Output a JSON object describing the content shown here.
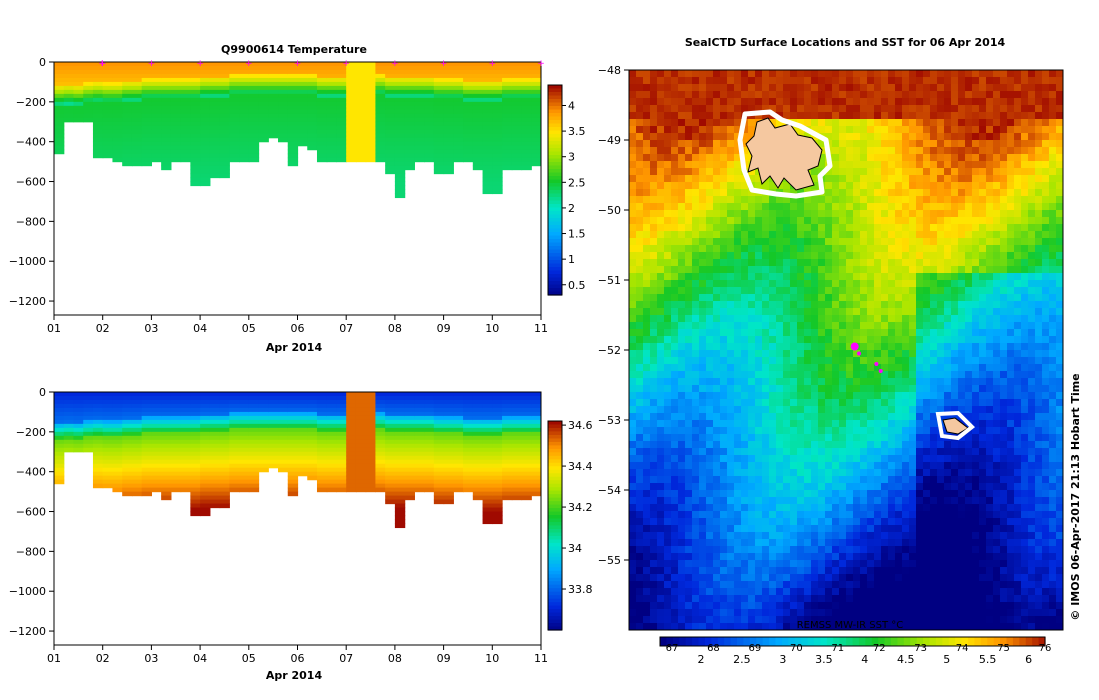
{
  "chart_data": [
    {
      "type": "heatmap",
      "title": "Q9900614  Temperature",
      "xlabel": "Apr 2014",
      "ylabel": "",
      "x_ticks": [
        "01",
        "02",
        "03",
        "04",
        "05",
        "06",
        "07",
        "08",
        "09",
        "10",
        "11"
      ],
      "y_ticks": [
        0,
        -200,
        -400,
        -600,
        -800,
        -1000,
        -1200
      ],
      "ylim": [
        -1270,
        0
      ],
      "colorbar_ticks": [
        "0.5",
        "1",
        "1.5",
        "2",
        "2.5",
        "3",
        "3.5",
        "4"
      ],
      "colorbar_range": [
        0.3,
        4.4
      ],
      "variable": "temperature",
      "thermocline_depth": [
        150,
        145,
        150,
        140,
        135,
        140,
        140,
        130,
        130,
        120,
        120,
        120,
        120,
        120,
        120,
        110,
        110,
        110,
        100,
        100,
        100,
        100,
        100,
        100,
        100,
        100,
        100,
        110,
        110,
        110,
        100,
        100,
        100,
        100,
        110,
        110,
        110,
        110,
        110,
        120,
        120,
        120,
        130,
        130,
        130,
        130,
        120,
        120,
        120,
        120
      ],
      "profile_depth": [
        450,
        300,
        300,
        300,
        480,
        480,
        500,
        510,
        520,
        520,
        500,
        530,
        500,
        500,
        610,
        610,
        570,
        570,
        500,
        500,
        500,
        390,
        380,
        400,
        520,
        420,
        440,
        490,
        490,
        490,
        500,
        500,
        500,
        500,
        560,
        680,
        540,
        500,
        500,
        550,
        550,
        500,
        500,
        540,
        650,
        650,
        540,
        530,
        530,
        520
      ],
      "profile_markers": [
        "01",
        "02",
        "03",
        "04",
        "05",
        "06",
        "07",
        "08",
        "09",
        "10",
        "11"
      ]
    },
    {
      "type": "heatmap",
      "title": "",
      "xlabel": "Apr 2014",
      "ylabel": "",
      "x_ticks": [
        "01",
        "02",
        "03",
        "04",
        "05",
        "06",
        "07",
        "08",
        "09",
        "10",
        "11"
      ],
      "y_ticks": [
        0,
        -200,
        -400,
        -600,
        -800,
        -1000,
        -1200
      ],
      "ylim": [
        -1270,
        0
      ],
      "colorbar_ticks": [
        "33.8",
        "34",
        "34.2",
        "34.4",
        "34.6"
      ],
      "colorbar_range": [
        33.6,
        34.62
      ],
      "variable": "salinity"
    },
    {
      "type": "heatmap",
      "title": "SealCTD Surface Locations and SST for 06 Apr 2014",
      "xlabel": "",
      "ylabel": "",
      "y_ticks": [
        "-48",
        "-49",
        "-50",
        "-51",
        "-52",
        "-53",
        "-54",
        "-55"
      ],
      "lat_range": [
        -56,
        -48
      ],
      "colorbar_ticks_c": [
        "2",
        "2.5",
        "3",
        "3.5",
        "4",
        "4.5",
        "5",
        "5.5",
        "6"
      ],
      "colorbar_ticks_f": [
        "67",
        "68",
        "69",
        "70",
        "71",
        "72",
        "73",
        "74",
        "75",
        "76"
      ],
      "colorbar_label": "REMSS MW-IR SST °C",
      "side_label": "© IMOS 06-Apr-2017 21:13 Hobart Time",
      "seal_track": [
        [
          -51.95,
          0.52
        ],
        [
          -52.05,
          0.53
        ],
        [
          -52.2,
          0.57
        ],
        [
          -52.3,
          0.58
        ]
      ]
    }
  ],
  "colors": {
    "magenta": "#ff00ff",
    "land": "#f5c8a0",
    "axis": "#000000"
  }
}
